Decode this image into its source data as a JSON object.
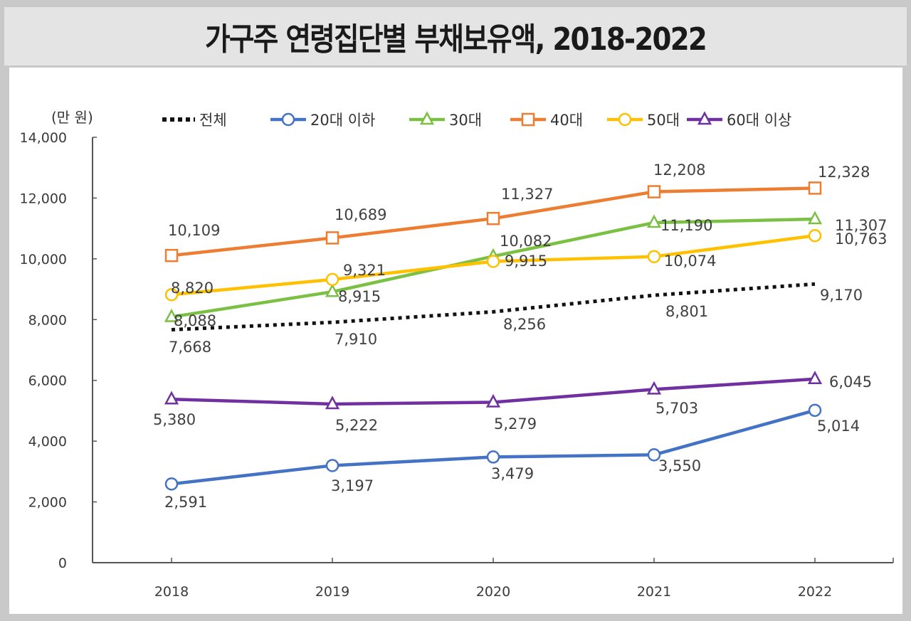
{
  "title": "가구주 연령집단별 부채보유액, 2018-2022",
  "chart_data": {
    "type": "line",
    "title": "가구주 연령집단별 부채보유액, 2018-2022",
    "unit_label": "(만 원)",
    "xlabel": "",
    "ylabel": "(만 원)",
    "x": [
      "2018",
      "2019",
      "2020",
      "2021",
      "2022"
    ],
    "ylim": [
      0,
      14000
    ],
    "yticks": [
      0,
      2000,
      4000,
      6000,
      8000,
      10000,
      12000,
      14000
    ],
    "ytick_labels": [
      "0",
      "2,000",
      "4,000",
      "6,000",
      "8,000",
      "10,000",
      "12,000",
      "14,000"
    ],
    "grid": false,
    "legend_position": "top",
    "series": [
      {
        "name": "전체",
        "color": "#111111",
        "style": "dotted",
        "marker": "none",
        "values": [
          7668,
          7910,
          8256,
          8801,
          9170
        ],
        "labels": [
          "7,668",
          "7,910",
          "8,256",
          "8,801",
          "9,170"
        ]
      },
      {
        "name": "20대 이하",
        "color": "#4472c4",
        "style": "solid",
        "marker": "circle",
        "values": [
          2591,
          3197,
          3479,
          3550,
          5014
        ],
        "labels": [
          "2,591",
          "3,197",
          "3,479",
          "3,550",
          "5,014"
        ]
      },
      {
        "name": "30대",
        "color": "#7ac143",
        "style": "solid",
        "marker": "triangle",
        "values": [
          8088,
          8915,
          10082,
          11190,
          11307
        ],
        "labels": [
          "8,088",
          "8,915",
          "10,082",
          "11,190",
          "11,307"
        ]
      },
      {
        "name": "40대",
        "color": "#ed7d31",
        "style": "solid",
        "marker": "square",
        "values": [
          10109,
          10689,
          11327,
          12208,
          12328
        ],
        "labels": [
          "10,109",
          "10,689",
          "11,327",
          "12,208",
          "12,328"
        ]
      },
      {
        "name": "50대",
        "color": "#ffc000",
        "style": "solid",
        "marker": "circle",
        "values": [
          8820,
          9321,
          9915,
          10074,
          10763
        ],
        "labels": [
          "8,820",
          "9,321",
          "9,915",
          "10,074",
          "10,763"
        ]
      },
      {
        "name": "60대 이상",
        "color": "#7030a0",
        "style": "solid",
        "marker": "triangle",
        "values": [
          5380,
          5222,
          5279,
          5703,
          6045
        ],
        "labels": [
          "5,380",
          "5,222",
          "5,279",
          "5,703",
          "6,045"
        ]
      }
    ]
  }
}
